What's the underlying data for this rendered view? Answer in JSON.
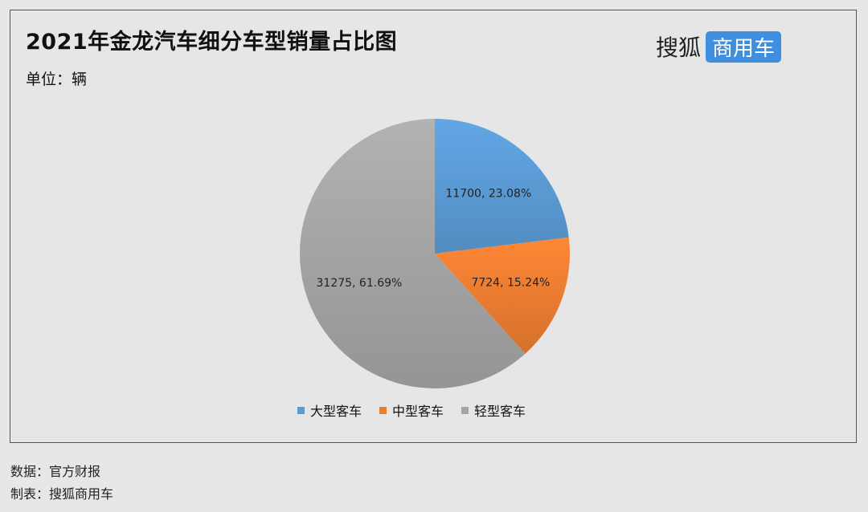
{
  "title": "2021年金龙汽车细分车型销量占比图",
  "unit": "单位：辆",
  "brand": {
    "name": "搜狐",
    "tag": "商用车",
    "tag_color": "#3f8fe0"
  },
  "chart_data": {
    "type": "pie",
    "series": [
      {
        "name": "大型客车",
        "value": 11700,
        "percent": "23.08%",
        "color": "#5b9bd5"
      },
      {
        "name": "中型客车",
        "value": 7724,
        "percent": "15.24%",
        "color": "#ed7d31"
      },
      {
        "name": "轻型客车",
        "value": 31275,
        "percent": "61.69%",
        "color": "#a5a5a5"
      }
    ],
    "legend_position": "bottom"
  },
  "footer": {
    "source": "数据：官方财报",
    "maker": "制表：搜狐商用车"
  }
}
